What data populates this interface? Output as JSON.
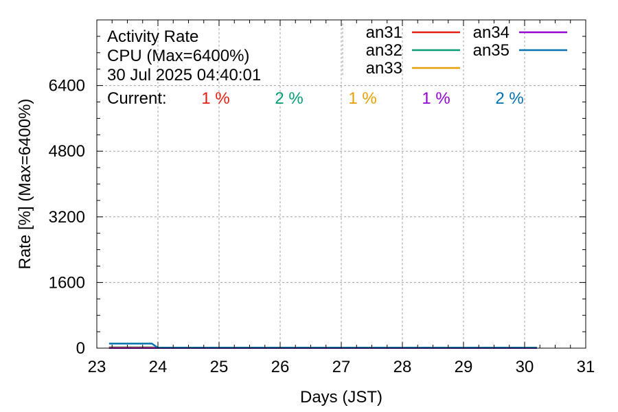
{
  "colors": {
    "an31": "#e51e10",
    "an32": "#009e73",
    "an33": "#e69f00",
    "an34": "#9400d3",
    "an35": "#0072b2",
    "grid": "#a0a0a0",
    "frame": "#000000"
  },
  "chart_data": {
    "type": "line",
    "title_lines": [
      "Activity Rate",
      "CPU (Max=6400%)",
      "30 Jul 2025 04:40:01"
    ],
    "current_label": "Current:",
    "xlabel": "Days (JST)",
    "ylabel": "Rate [%]  (Max=6400%)",
    "xlim": [
      23,
      31
    ],
    "ylim": [
      0,
      8000
    ],
    "xticks": [
      23,
      24,
      25,
      26,
      27,
      28,
      29,
      30,
      31
    ],
    "yticks": [
      0,
      1600,
      3200,
      4800,
      6400
    ],
    "ytick_labels": [
      "0",
      "1600",
      "3200",
      "4800",
      "6400"
    ],
    "xtick_labels": [
      "23",
      "24",
      "25",
      "26",
      "27",
      "28",
      "29",
      "30",
      "31"
    ],
    "grid": true,
    "legend_position": "top-right",
    "series": [
      {
        "name": "an31",
        "current": "1 %",
        "x": [
          23.2,
          23.9,
          24.0,
          30.2
        ],
        "y": [
          10,
          10,
          5,
          5
        ]
      },
      {
        "name": "an32",
        "current": "2 %",
        "x": [
          23.2,
          23.9,
          24.0,
          30.2
        ],
        "y": [
          20,
          20,
          10,
          10
        ]
      },
      {
        "name": "an33",
        "current": "1 %",
        "x": [
          23.2,
          23.9,
          24.0,
          30.2
        ],
        "y": [
          15,
          15,
          8,
          8
        ]
      },
      {
        "name": "an34",
        "current": "1 %",
        "x": [
          23.2,
          23.9,
          24.0,
          30.2
        ],
        "y": [
          5,
          5,
          5,
          5
        ]
      },
      {
        "name": "an35",
        "current": "2 %",
        "x": [
          23.2,
          23.9,
          24.0,
          30.2
        ],
        "y": [
          110,
          110,
          10,
          10
        ]
      }
    ]
  }
}
